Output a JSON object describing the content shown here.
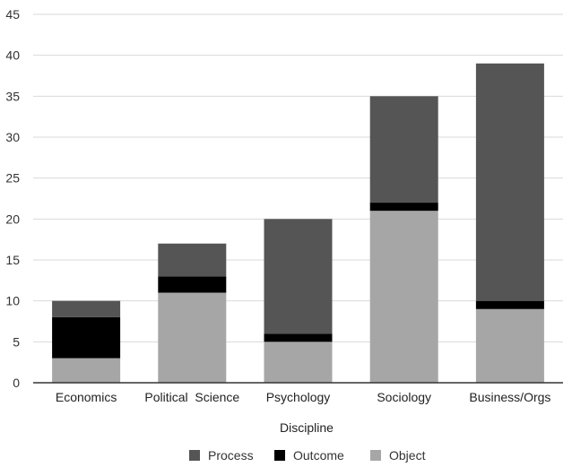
{
  "chart_data": {
    "type": "bar",
    "stacked": true,
    "categories": [
      "Economics",
      "Political  Science",
      "Psychology",
      "Sociology",
      "Business/Orgs"
    ],
    "series": [
      {
        "name": "Object",
        "color": "#a6a6a6",
        "values": [
          3,
          11,
          5,
          21,
          9
        ]
      },
      {
        "name": "Outcome",
        "color": "#000000",
        "values": [
          5,
          2,
          1,
          1,
          1
        ]
      },
      {
        "name": "Process",
        "color": "#555555",
        "values": [
          2,
          4,
          14,
          13,
          29
        ]
      }
    ],
    "legend_order": [
      "Process",
      "Outcome",
      "Object"
    ],
    "legend_position": "bottom",
    "title": "",
    "xlabel": "Discipline",
    "ylabel": "",
    "ylim": [
      0,
      45
    ],
    "yticks": [
      0,
      5,
      10,
      15,
      20,
      25,
      30,
      35,
      40,
      45
    ],
    "grid": true,
    "grid_color": "#d9d9d9",
    "axis_color": "#333333"
  }
}
